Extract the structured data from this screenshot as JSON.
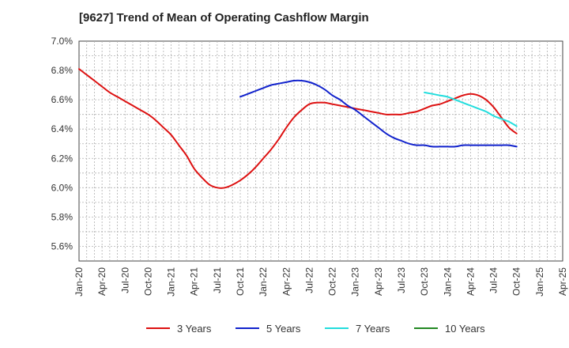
{
  "chart_data": {
    "type": "line",
    "title": "[9627]  Trend of Mean of Operating Cashflow Margin",
    "xlabel": "",
    "ylabel": "",
    "x_categories": [
      "Jan-20",
      "Apr-20",
      "Jul-20",
      "Oct-20",
      "Jan-21",
      "Apr-21",
      "Jul-21",
      "Oct-21",
      "Jan-22",
      "Apr-22",
      "Jul-22",
      "Oct-22",
      "Jan-23",
      "Apr-23",
      "Jul-23",
      "Oct-23",
      "Jan-24",
      "Apr-24",
      "Jul-24",
      "Oct-24",
      "Jan-25",
      "Apr-25"
    ],
    "y_ticks": [
      "5.6%",
      "5.8%",
      "6.0%",
      "6.2%",
      "6.4%",
      "6.6%",
      "6.8%",
      "7.0%"
    ],
    "ylim": [
      5.5,
      7.0
    ],
    "grid": true,
    "legend_position": "bottom",
    "series": [
      {
        "name": "3 Years",
        "color": "#dd1111",
        "x": [
          "Jan-20",
          "Feb-20",
          "Mar-20",
          "Apr-20",
          "May-20",
          "Jun-20",
          "Jul-20",
          "Aug-20",
          "Sep-20",
          "Oct-20",
          "Nov-20",
          "Dec-20",
          "Jan-21",
          "Feb-21",
          "Mar-21",
          "Apr-21",
          "May-21",
          "Jun-21",
          "Jul-21",
          "Aug-21",
          "Sep-21",
          "Oct-21",
          "Nov-21",
          "Dec-21",
          "Jan-22",
          "Feb-22",
          "Mar-22",
          "Apr-22",
          "May-22",
          "Jun-22",
          "Jul-22",
          "Aug-22",
          "Sep-22",
          "Oct-22",
          "Nov-22",
          "Dec-22",
          "Jan-23",
          "Feb-23",
          "Mar-23",
          "Apr-23",
          "May-23",
          "Jun-23",
          "Jul-23",
          "Aug-23",
          "Sep-23",
          "Oct-23",
          "Nov-23",
          "Dec-23",
          "Jan-24",
          "Feb-24",
          "Mar-24",
          "Apr-24",
          "May-24",
          "Jun-24",
          "Jul-24",
          "Aug-24",
          "Sep-24",
          "Oct-24"
        ],
        "values": [
          6.81,
          6.77,
          6.73,
          6.69,
          6.65,
          6.62,
          6.59,
          6.56,
          6.53,
          6.5,
          6.46,
          6.41,
          6.36,
          6.29,
          6.22,
          6.13,
          6.07,
          6.02,
          6.0,
          6.0,
          6.02,
          6.05,
          6.09,
          6.14,
          6.2,
          6.26,
          6.33,
          6.41,
          6.48,
          6.53,
          6.57,
          6.58,
          6.58,
          6.57,
          6.56,
          6.55,
          6.54,
          6.53,
          6.52,
          6.51,
          6.5,
          6.5,
          6.5,
          6.51,
          6.52,
          6.54,
          6.56,
          6.57,
          6.59,
          6.61,
          6.63,
          6.64,
          6.63,
          6.6,
          6.55,
          6.48,
          6.41,
          6.37
        ]
      },
      {
        "name": "5 Years",
        "color": "#1122cc",
        "x": [
          "Oct-21",
          "Nov-21",
          "Dec-21",
          "Jan-22",
          "Feb-22",
          "Mar-22",
          "Apr-22",
          "May-22",
          "Jun-22",
          "Jul-22",
          "Aug-22",
          "Sep-22",
          "Oct-22",
          "Nov-22",
          "Dec-22",
          "Jan-23",
          "Feb-23",
          "Mar-23",
          "Apr-23",
          "May-23",
          "Jun-23",
          "Jul-23",
          "Aug-23",
          "Sep-23",
          "Oct-23",
          "Nov-23",
          "Dec-23",
          "Jan-24",
          "Feb-24",
          "Mar-24",
          "Apr-24",
          "May-24",
          "Jun-24",
          "Jul-24",
          "Aug-24",
          "Sep-24",
          "Oct-24"
        ],
        "values": [
          6.62,
          6.64,
          6.66,
          6.68,
          6.7,
          6.71,
          6.72,
          6.73,
          6.73,
          6.72,
          6.7,
          6.67,
          6.63,
          6.6,
          6.56,
          6.53,
          6.49,
          6.45,
          6.41,
          6.37,
          6.34,
          6.32,
          6.3,
          6.29,
          6.29,
          6.28,
          6.28,
          6.28,
          6.28,
          6.29,
          6.29,
          6.29,
          6.29,
          6.29,
          6.29,
          6.29,
          6.28
        ]
      },
      {
        "name": "7 Years",
        "color": "#22dddd",
        "x": [
          "Oct-23",
          "Nov-23",
          "Dec-23",
          "Jan-24",
          "Feb-24",
          "Mar-24",
          "Apr-24",
          "May-24",
          "Jun-24",
          "Jul-24",
          "Aug-24",
          "Sep-24",
          "Oct-24"
        ],
        "values": [
          6.65,
          6.64,
          6.63,
          6.62,
          6.6,
          6.58,
          6.56,
          6.54,
          6.52,
          6.49,
          6.47,
          6.45,
          6.42
        ]
      },
      {
        "name": "10 Years",
        "color": "#228822",
        "x": [],
        "values": []
      }
    ]
  }
}
